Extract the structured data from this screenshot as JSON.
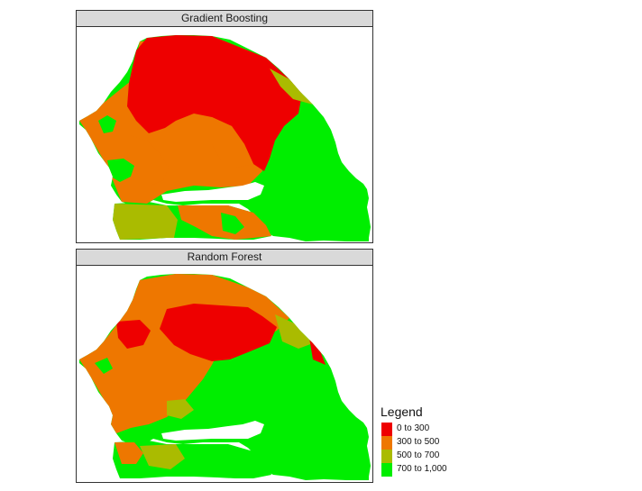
{
  "panels": [
    {
      "title": "Gradient Boosting"
    },
    {
      "title": "Random Forest"
    }
  ],
  "legend": {
    "title": "Legend",
    "items": [
      {
        "label": "0 to 300",
        "color": "#ee0000"
      },
      {
        "label": "300 to 500",
        "color": "#ee7700"
      },
      {
        "label": "500 to 700",
        "color": "#aabb00"
      },
      {
        "label": "700 to 1,000",
        "color": "#00ee00"
      }
    ]
  }
}
